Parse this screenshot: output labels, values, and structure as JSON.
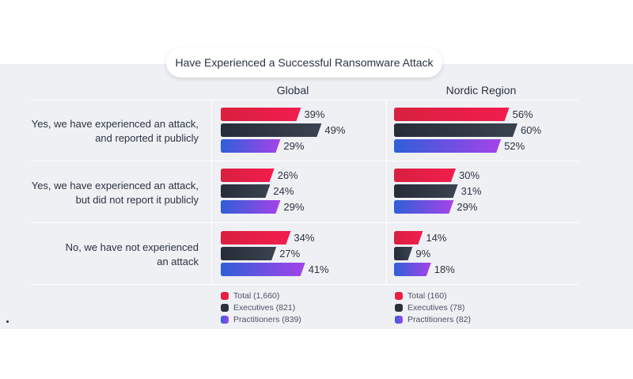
{
  "chart_data": {
    "type": "bar",
    "orientation": "horizontal",
    "title": "Have Experienced a Successful Ransomware Attack",
    "categories": [
      "Yes, we have experienced an attack, and reported it publicly",
      "Yes, we have experienced an attack, but did not report it publicly",
      "No, we have not experienced an attack"
    ],
    "category_lines": [
      [
        "Yes, we have experienced an attack,",
        "and reported it publicly"
      ],
      [
        "Yes, we have experienced an attack,",
        "but did not report it publicly"
      ],
      [
        "No, we have not experienced",
        "an attack"
      ]
    ],
    "value_suffix": "%",
    "panels": [
      {
        "name": "Global",
        "series": [
          {
            "name": "Total (1,660)",
            "values": [
              39,
              26,
              34
            ]
          },
          {
            "name": "Executives (821)",
            "values": [
              49,
              24,
              27
            ]
          },
          {
            "name": "Practitioners (839)",
            "values": [
              29,
              29,
              41
            ]
          }
        ]
      },
      {
        "name": "Nordic Region",
        "series": [
          {
            "name": "Total (160)",
            "values": [
              56,
              30,
              14
            ]
          },
          {
            "name": "Executives (78)",
            "values": [
              60,
              31,
              9
            ]
          },
          {
            "name": "Practitioners (82)",
            "values": [
              52,
              29,
              18
            ]
          }
        ]
      }
    ],
    "series_colors": {
      "total": [
        "#d8203f",
        "#f21d4e"
      ],
      "executives": [
        "#262d38",
        "#3a4350"
      ],
      "practitioners": [
        "#2f5fd8",
        "#a543e8"
      ]
    }
  }
}
